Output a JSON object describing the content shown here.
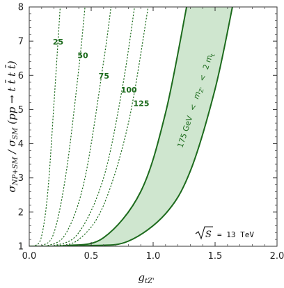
{
  "chart_data": {
    "type": "line",
    "xlabel": "g_{tZ'}",
    "ylabel": "σ_{NP+SM} / σ_{SM} (pp → t t̄ t t̄)",
    "xlim": [
      0.0,
      2.0
    ],
    "ylim": [
      1,
      8
    ],
    "x_ticks": [
      "0.0",
      "0.5",
      "1.0",
      "1.5",
      "2.0"
    ],
    "y_ticks": [
      "1",
      "2",
      "3",
      "4",
      "5",
      "6",
      "7",
      "8"
    ],
    "grid": false,
    "annotation": "√S = 13 TeV",
    "annotation_parts": {
      "root": "S",
      "rest": "= 13 TeV"
    },
    "colors": {
      "curve": "#1d6b1d",
      "band_fill": "#cfe6cf",
      "label": "#1d6b1d"
    },
    "series": [
      {
        "label": "25",
        "style": "dotted",
        "x": [
          0,
          0.05,
          0.1,
          0.15,
          0.2,
          0.25
        ],
        "y": [
          1,
          1.02,
          1.3,
          2.6,
          5.2,
          8.0
        ]
      },
      {
        "label": "50",
        "style": "dotted",
        "x": [
          0,
          0.1,
          0.2,
          0.3,
          0.4,
          0.45
        ],
        "y": [
          1,
          1.02,
          1.4,
          3.2,
          6.2,
          8.0
        ]
      },
      {
        "label": "75",
        "style": "dotted",
        "x": [
          0,
          0.15,
          0.3,
          0.45,
          0.6,
          0.66
        ],
        "y": [
          1,
          1.02,
          1.4,
          3.0,
          6.4,
          8.0
        ]
      },
      {
        "label": "100",
        "style": "dotted",
        "x": [
          0,
          0.2,
          0.4,
          0.6,
          0.75,
          0.85
        ],
        "y": [
          1,
          1.02,
          1.4,
          3.0,
          5.6,
          8.0
        ]
      },
      {
        "label": "125",
        "style": "dotted",
        "x": [
          0,
          0.2,
          0.4,
          0.6,
          0.8,
          0.96
        ],
        "y": [
          1,
          1.01,
          1.2,
          2.2,
          4.6,
          8.0
        ]
      }
    ],
    "band": {
      "label_parts": {
        "lower": "175 GeV",
        "lt1": "<",
        "mid": "m",
        "mid_sub": "Z'",
        "lt2": "<",
        "upper": "2 m",
        "upper_sub": "t"
      },
      "left_boundary": {
        "x": [
          0,
          0.3,
          0.6,
          0.9,
          1.1,
          1.27
        ],
        "y": [
          1,
          1.02,
          1.25,
          2.6,
          4.9,
          8.0
        ]
      },
      "right_boundary": {
        "x": [
          0,
          0.5,
          0.8,
          1.1,
          1.3,
          1.5,
          1.64
        ],
        "y": [
          1,
          1.02,
          1.15,
          1.95,
          3.2,
          5.6,
          8.0
        ]
      }
    }
  }
}
